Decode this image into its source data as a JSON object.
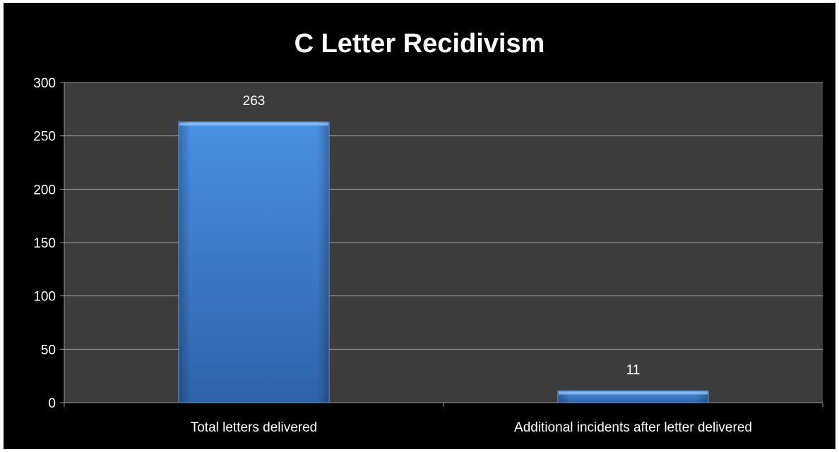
{
  "chart_data": {
    "type": "bar",
    "title": "C Letter Recidivism",
    "xlabel": "",
    "ylabel": "",
    "categories": [
      "Total letters delivered",
      "Additional incidents after letter delivered"
    ],
    "values": [
      263,
      11
    ],
    "data_labels": [
      "263",
      "11"
    ],
    "ylim": [
      0,
      300
    ],
    "yticks": [
      0,
      50,
      100,
      150,
      200,
      250,
      300
    ],
    "ytick_labels": [
      "0",
      "50",
      "100",
      "150",
      "200",
      "250",
      "300"
    ],
    "grid": true,
    "legend": "none"
  },
  "colors": {
    "background": "#000000",
    "plot_area": "#3c3c3c",
    "gridline": "#9a9a9a",
    "bar_top": "#4a90e2",
    "bar_bottom": "#2f63a8",
    "text": "#ffffff"
  }
}
